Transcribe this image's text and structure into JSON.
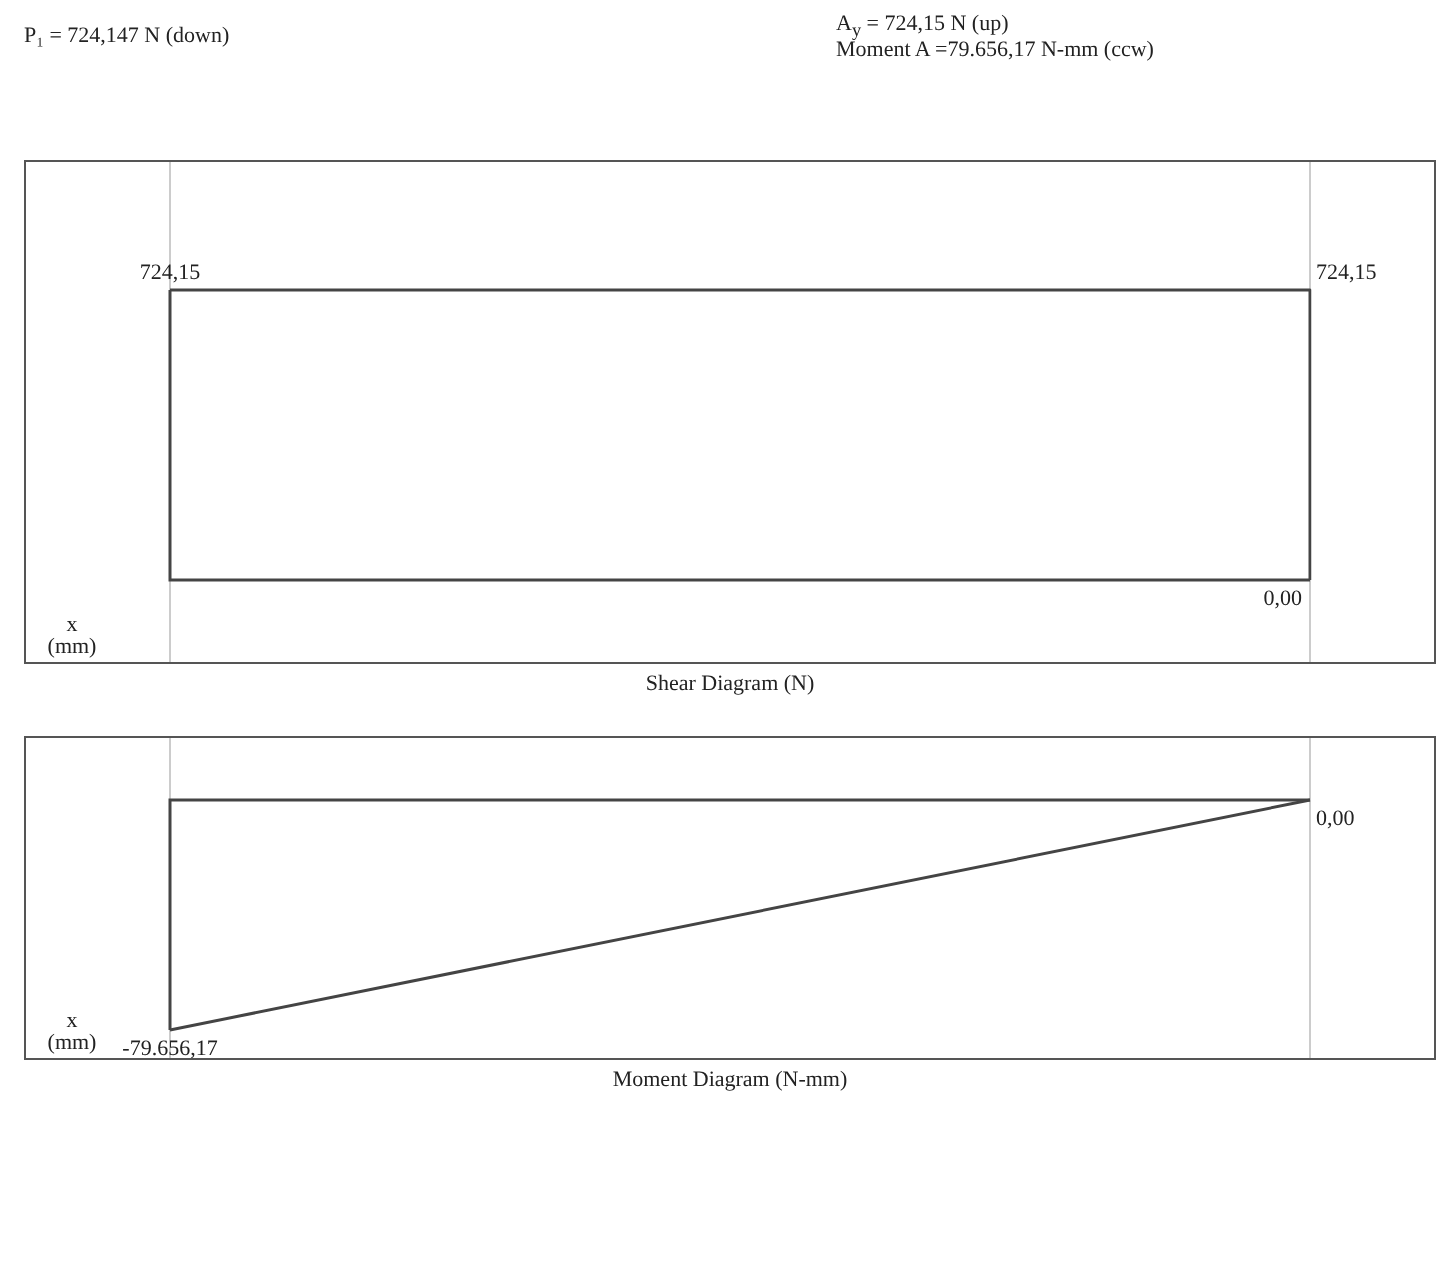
{
  "chart_data": [
    {
      "type": "step",
      "title": "Shear Diagram   (N)",
      "xlabel": "x (mm)",
      "categories": [
        null,
        null
      ],
      "series": [
        {
          "color": "#444444",
          "values": [
            724.15,
            0
          ],
          "value_labels": [
            "724,15",
            "0,00"
          ]
        }
      ],
      "grid": "x",
      "tick_labels": false,
      "annotations": [
        "P₁ = 724,147 N (down)",
        "A$_{y}$ =  724,15 N (up)",
        "Moment A =79.656,17 N-mm (ccw)",
        "724,15"
      ]
    },
    {
      "type": "line",
      "title": "Moment Diagram   (N-mm)",
      "xlabel": "x (mm)",
      "categories": [
        null,
        null
      ],
      "series": [
        {
          "color": "#444444",
          "values": [
            -79656.17,
            0
          ],
          "value_labels": [
            "-79.656,17",
            "0,00"
          ]
        }
      ],
      "grid": "x",
      "tick_labels": false
    }
  ]
}
